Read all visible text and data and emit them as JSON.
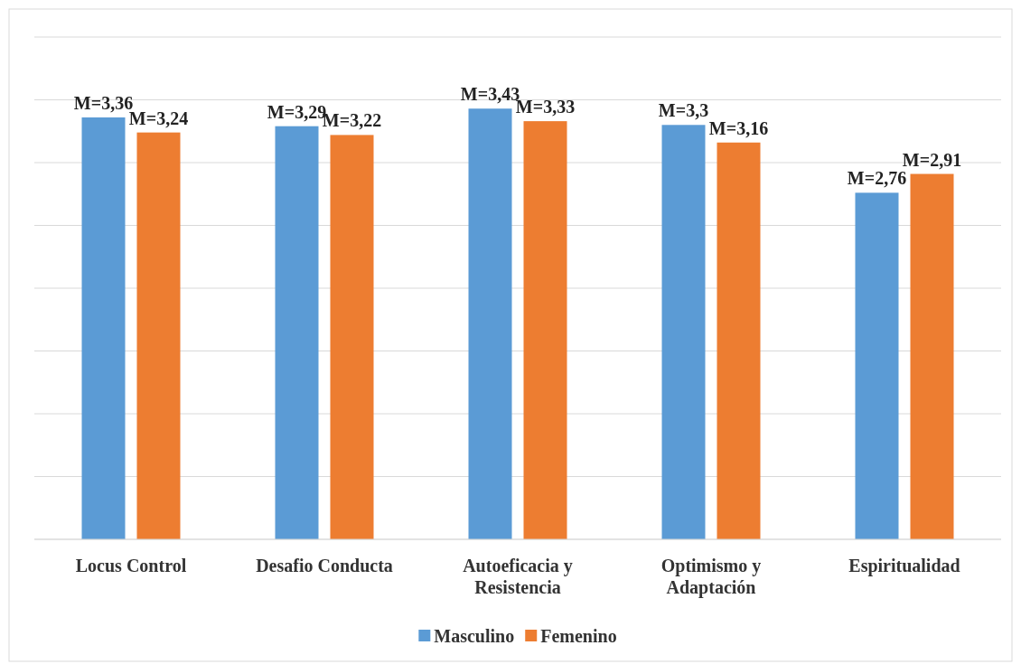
{
  "chart_data": {
    "type": "bar",
    "categories": [
      "Locus Control",
      "Desafio Conducta",
      "Autoeficacia y Resistencia",
      "Optimismo y Adaptación",
      "Espiritualidad"
    ],
    "series": [
      {
        "name": "Masculino",
        "color": "#5b9bd5",
        "values": [
          3.36,
          3.29,
          3.43,
          3.3,
          2.76
        ],
        "value_labels": [
          "M=3,36",
          "M=3,29",
          "M=3,43",
          "M=3,3",
          "M=2,76"
        ]
      },
      {
        "name": "Femenino",
        "color": "#ed7d31",
        "values": [
          3.24,
          3.22,
          3.33,
          3.16,
          2.91
        ],
        "value_labels": [
          "M=3,24",
          "M=3,22",
          "M=3,33",
          "M=3,16",
          "M=2,91"
        ]
      }
    ],
    "ylim": [
      0,
      4
    ],
    "yticks": [
      {
        "value": 0,
        "label": null
      },
      {
        "value": 0.5,
        "label": null
      },
      {
        "value": 1,
        "label": null
      },
      {
        "value": 1.5,
        "label": null
      },
      {
        "value": 2,
        "label": null
      },
      {
        "value": 2.5,
        "label": null
      },
      {
        "value": 3,
        "label": null
      },
      {
        "value": 3.5,
        "label": null
      },
      {
        "value": 4,
        "label": null
      }
    ],
    "tick_labels": "x",
    "grid": "y",
    "legend": "bottom"
  }
}
